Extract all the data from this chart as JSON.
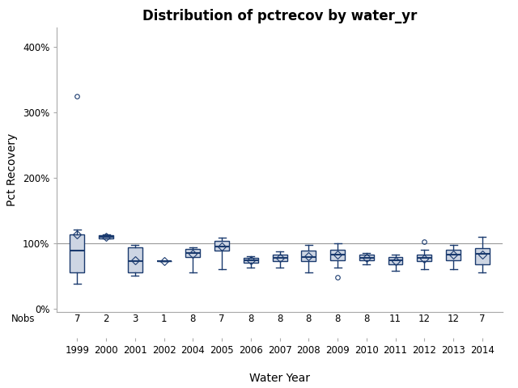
{
  "title": "Distribution of pctrecov by water_yr",
  "xlabel": "Water Year",
  "ylabel": "Pct Recovery",
  "years": [
    1999,
    2000,
    2001,
    2002,
    2004,
    2005,
    2006,
    2007,
    2008,
    2009,
    2010,
    2011,
    2012,
    2013,
    2014
  ],
  "nobs": [
    7,
    2,
    3,
    1,
    8,
    7,
    8,
    8,
    8,
    8,
    8,
    11,
    12,
    12,
    7
  ],
  "boxes": [
    {
      "q1": 55,
      "med": 88,
      "q3": 113,
      "whislo": 38,
      "whishi": 120,
      "mean": 113,
      "fliers": [
        325
      ]
    },
    {
      "q1": 107,
      "med": 110,
      "q3": 112,
      "whislo": 107,
      "whishi": 113,
      "mean": 110,
      "fliers": []
    },
    {
      "q1": 55,
      "med": 72,
      "q3": 93,
      "whislo": 50,
      "whishi": 97,
      "mean": 73,
      "fliers": []
    },
    {
      "q1": 72,
      "med": 72,
      "q3": 72,
      "whislo": 72,
      "whishi": 72,
      "mean": 72,
      "fliers": []
    },
    {
      "q1": 78,
      "med": 85,
      "q3": 91,
      "whislo": 55,
      "whishi": 93,
      "mean": 84,
      "fliers": []
    },
    {
      "q1": 88,
      "med": 95,
      "q3": 103,
      "whislo": 60,
      "whishi": 108,
      "mean": 94,
      "fliers": []
    },
    {
      "q1": 70,
      "med": 73,
      "q3": 77,
      "whislo": 62,
      "whishi": 80,
      "mean": 73,
      "fliers": []
    },
    {
      "q1": 72,
      "med": 77,
      "q3": 82,
      "whislo": 62,
      "whishi": 87,
      "mean": 77,
      "fliers": []
    },
    {
      "q1": 72,
      "med": 78,
      "q3": 88,
      "whislo": 55,
      "whishi": 97,
      "mean": 80,
      "fliers": []
    },
    {
      "q1": 73,
      "med": 82,
      "q3": 90,
      "whislo": 62,
      "whishi": 99,
      "mean": 82,
      "fliers": [
        48
      ]
    },
    {
      "q1": 73,
      "med": 77,
      "q3": 82,
      "whislo": 67,
      "whishi": 85,
      "mean": 77,
      "fliers": []
    },
    {
      "q1": 68,
      "med": 73,
      "q3": 78,
      "whislo": 58,
      "whishi": 82,
      "mean": 72,
      "fliers": []
    },
    {
      "q1": 72,
      "med": 77,
      "q3": 82,
      "whislo": 60,
      "whishi": 90,
      "mean": 76,
      "fliers": [
        102
      ]
    },
    {
      "q1": 73,
      "med": 82,
      "q3": 90,
      "whislo": 60,
      "whishi": 97,
      "mean": 82,
      "fliers": []
    },
    {
      "q1": 68,
      "med": 83,
      "q3": 92,
      "whislo": 55,
      "whishi": 110,
      "mean": 82,
      "fliers": []
    }
  ],
  "box_facecolor": "#cdd5e3",
  "box_edgecolor": "#1a3a6e",
  "median_color": "#1a3a6e",
  "whisker_color": "#1a3a6e",
  "cap_color": "#1a3a6e",
  "flier_color": "#1a3a6e",
  "mean_color": "#1a3a6e",
  "hline_y": 100,
  "hline_color": "#999999",
  "ylim": [
    -5,
    430
  ],
  "yticks": [
    0,
    100,
    200,
    300,
    400
  ],
  "yticklabels": [
    "0%",
    "100%",
    "200%",
    "300%",
    "400%"
  ],
  "background_color": "#ffffff",
  "title_fontsize": 12,
  "label_fontsize": 10,
  "tick_fontsize": 8.5,
  "nobs_fontsize": 8.5,
  "box_width": 0.5
}
